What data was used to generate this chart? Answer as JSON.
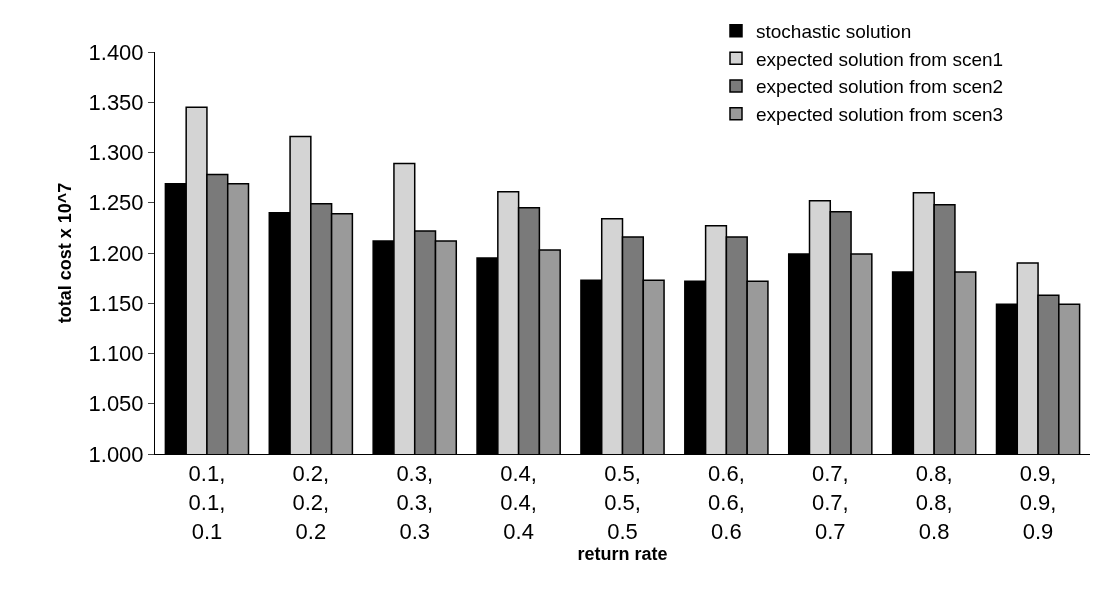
{
  "chart_data": {
    "type": "bar",
    "xlabel": "return rate",
    "ylabel": "total cost x 10^7",
    "categories": [
      "0.1, 0.1, 0.1",
      "0.2, 0.2, 0.2",
      "0.3, 0.3, 0.3",
      "0.4, 0.4, 0.4",
      "0.5, 0.5, 0.5",
      "0.6, 0.6, 0.6",
      "0.7, 0.7, 0.7",
      "0.8, 0.8, 0.8",
      "0.9, 0.9, 0.9"
    ],
    "series": [
      {
        "name": "stochastic solution",
        "color": "#000000",
        "values": [
          1.269,
          1.24,
          1.212,
          1.195,
          1.173,
          1.172,
          1.199,
          1.181,
          1.149
        ]
      },
      {
        "name": "expected solution from scen1",
        "color": "#d4d4d4",
        "values": [
          1.345,
          1.316,
          1.289,
          1.261,
          1.234,
          1.227,
          1.252,
          1.26,
          1.19
        ]
      },
      {
        "name": "expected solution from scen2",
        "color": "#7a7a7a",
        "values": [
          1.278,
          1.249,
          1.222,
          1.245,
          1.216,
          1.216,
          1.241,
          1.248,
          1.158
        ]
      },
      {
        "name": "expected solution from scen3",
        "color": "#9a9a9a",
        "values": [
          1.269,
          1.239,
          1.212,
          1.203,
          1.173,
          1.172,
          1.199,
          1.181,
          1.149
        ]
      }
    ],
    "ylim": [
      1.0,
      1.4
    ],
    "yticks": [
      {
        "value": 1.0,
        "label": "1.000"
      },
      {
        "value": 1.05,
        "label": "1.050"
      },
      {
        "value": 1.1,
        "label": "1.100"
      },
      {
        "value": 1.15,
        "label": "1.150"
      },
      {
        "value": 1.2,
        "label": "1.200"
      },
      {
        "value": 1.25,
        "label": "1.250"
      },
      {
        "value": 1.3,
        "label": "1.300"
      },
      {
        "value": 1.35,
        "label": "1.350"
      },
      {
        "value": 1.4,
        "label": "1.400"
      }
    ],
    "grid": false,
    "legend": "top right"
  }
}
